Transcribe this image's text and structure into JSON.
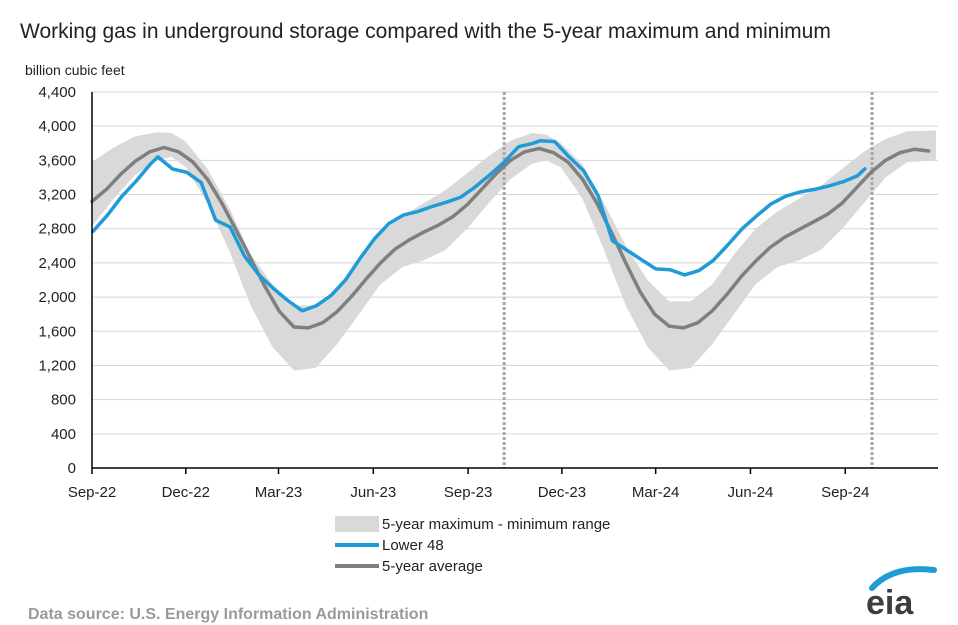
{
  "chart_data": {
    "type": "line",
    "title": "Working gas in underground  storage compared with the 5-year maximum and minimum",
    "ylabel": "billion cubic feet",
    "ylim": [
      0,
      4400
    ],
    "yticks": [
      "0",
      "400",
      "800",
      "1,200",
      "1,600",
      "2,000",
      "2,400",
      "2,800",
      "3,200",
      "3,600",
      "4,000",
      "4,400"
    ],
    "xlim": [
      "2022-09-01",
      "2024-11-30"
    ],
    "xticks": [
      {
        "date": "2022-09-01",
        "label": "Sep-22"
      },
      {
        "date": "2022-12-01",
        "label": "Dec-22"
      },
      {
        "date": "2023-03-01",
        "label": "Mar-23"
      },
      {
        "date": "2023-06-01",
        "label": "Jun-23"
      },
      {
        "date": "2023-09-01",
        "label": "Sep-23"
      },
      {
        "date": "2023-12-01",
        "label": "Dec-23"
      },
      {
        "date": "2024-03-01",
        "label": "Mar-24"
      },
      {
        "date": "2024-06-01",
        "label": "Jun-24"
      },
      {
        "date": "2024-09-01",
        "label": "Sep-24"
      }
    ],
    "grid": "horizontal",
    "legend_position": "bottom",
    "legend": [
      {
        "label": "5-year maximum - minimum range",
        "color": "#d9d9d9"
      },
      {
        "label": "Lower 48",
        "color": "#1f9bd7"
      },
      {
        "label": "5-year average",
        "color": "#7f7f7f"
      }
    ],
    "reference_lines": [
      {
        "date": "2023-10-06"
      },
      {
        "date": "2024-09-27"
      }
    ],
    "series": [
      {
        "name": "5-year maximum - minimum range",
        "kind": "band",
        "color": "#d9d9d9",
        "points": [
          {
            "date": "2022-09-01",
            "max": 3580,
            "min": 2830
          },
          {
            "date": "2022-09-22",
            "max": 3750,
            "min": 3150
          },
          {
            "date": "2022-10-13",
            "max": 3880,
            "min": 3430
          },
          {
            "date": "2022-11-03",
            "max": 3930,
            "min": 3600
          },
          {
            "date": "2022-11-17",
            "max": 3920,
            "min": 3640
          },
          {
            "date": "2022-12-01",
            "max": 3820,
            "min": 3520
          },
          {
            "date": "2022-12-22",
            "max": 3500,
            "min": 3100
          },
          {
            "date": "2023-01-12",
            "max": 3050,
            "min": 2550
          },
          {
            "date": "2023-02-02",
            "max": 2500,
            "min": 1900
          },
          {
            "date": "2023-02-23",
            "max": 2150,
            "min": 1420
          },
          {
            "date": "2023-03-16",
            "max": 1900,
            "min": 1140
          },
          {
            "date": "2023-04-06",
            "max": 1900,
            "min": 1170
          },
          {
            "date": "2023-04-27",
            "max": 2100,
            "min": 1450
          },
          {
            "date": "2023-05-18",
            "max": 2450,
            "min": 1800
          },
          {
            "date": "2023-06-08",
            "max": 2750,
            "min": 2150
          },
          {
            "date": "2023-06-29",
            "max": 2950,
            "min": 2350
          },
          {
            "date": "2023-07-20",
            "max": 3100,
            "min": 2430
          },
          {
            "date": "2023-08-10",
            "max": 3250,
            "min": 2550
          },
          {
            "date": "2023-08-31",
            "max": 3450,
            "min": 2800
          },
          {
            "date": "2023-09-21",
            "max": 3650,
            "min": 3100
          },
          {
            "date": "2023-10-12",
            "max": 3830,
            "min": 3380
          },
          {
            "date": "2023-11-02",
            "max": 3920,
            "min": 3560
          },
          {
            "date": "2023-11-16",
            "max": 3900,
            "min": 3600
          },
          {
            "date": "2023-11-30",
            "max": 3800,
            "min": 3520
          },
          {
            "date": "2023-12-21",
            "max": 3550,
            "min": 3150
          },
          {
            "date": "2024-01-11",
            "max": 3100,
            "min": 2550
          },
          {
            "date": "2024-02-01",
            "max": 2600,
            "min": 1900
          },
          {
            "date": "2024-02-22",
            "max": 2200,
            "min": 1420
          },
          {
            "date": "2024-03-14",
            "max": 1950,
            "min": 1140
          },
          {
            "date": "2024-04-04",
            "max": 1950,
            "min": 1170
          },
          {
            "date": "2024-04-25",
            "max": 2150,
            "min": 1450
          },
          {
            "date": "2024-05-16",
            "max": 2500,
            "min": 1800
          },
          {
            "date": "2024-06-06",
            "max": 2800,
            "min": 2150
          },
          {
            "date": "2024-06-27",
            "max": 3000,
            "min": 2350
          },
          {
            "date": "2024-07-18",
            "max": 3150,
            "min": 2430
          },
          {
            "date": "2024-08-08",
            "max": 3300,
            "min": 2550
          },
          {
            "date": "2024-08-29",
            "max": 3500,
            "min": 2800
          },
          {
            "date": "2024-09-19",
            "max": 3700,
            "min": 3100
          },
          {
            "date": "2024-10-10",
            "max": 3850,
            "min": 3400
          },
          {
            "date": "2024-10-31",
            "max": 3940,
            "min": 3580
          },
          {
            "date": "2024-11-28",
            "max": 3950,
            "min": 3600
          }
        ]
      },
      {
        "name": "Lower 48",
        "kind": "line",
        "color": "#1f9bd7",
        "points": [
          {
            "date": "2022-09-02",
            "value": 2770
          },
          {
            "date": "2022-09-16",
            "value": 2960
          },
          {
            "date": "2022-09-30",
            "value": 3180
          },
          {
            "date": "2022-10-14",
            "value": 3360
          },
          {
            "date": "2022-10-28",
            "value": 3560
          },
          {
            "date": "2022-11-04",
            "value": 3640
          },
          {
            "date": "2022-11-18",
            "value": 3500
          },
          {
            "date": "2022-12-02",
            "value": 3460
          },
          {
            "date": "2022-12-16",
            "value": 3340
          },
          {
            "date": "2022-12-30",
            "value": 2900
          },
          {
            "date": "2023-01-13",
            "value": 2820
          },
          {
            "date": "2023-01-27",
            "value": 2480
          },
          {
            "date": "2023-02-10",
            "value": 2260
          },
          {
            "date": "2023-02-24",
            "value": 2100
          },
          {
            "date": "2023-03-10",
            "value": 1960
          },
          {
            "date": "2023-03-24",
            "value": 1840
          },
          {
            "date": "2023-04-07",
            "value": 1900
          },
          {
            "date": "2023-04-21",
            "value": 2020
          },
          {
            "date": "2023-05-05",
            "value": 2200
          },
          {
            "date": "2023-05-19",
            "value": 2450
          },
          {
            "date": "2023-06-02",
            "value": 2680
          },
          {
            "date": "2023-06-16",
            "value": 2860
          },
          {
            "date": "2023-06-30",
            "value": 2960
          },
          {
            "date": "2023-07-14",
            "value": 3000
          },
          {
            "date": "2023-07-28",
            "value": 3060
          },
          {
            "date": "2023-08-11",
            "value": 3110
          },
          {
            "date": "2023-08-25",
            "value": 3170
          },
          {
            "date": "2023-09-08",
            "value": 3290
          },
          {
            "date": "2023-09-22",
            "value": 3430
          },
          {
            "date": "2023-10-06",
            "value": 3580
          },
          {
            "date": "2023-10-20",
            "value": 3760
          },
          {
            "date": "2023-11-03",
            "value": 3800
          },
          {
            "date": "2023-11-10",
            "value": 3830
          },
          {
            "date": "2023-11-24",
            "value": 3820
          },
          {
            "date": "2023-12-08",
            "value": 3640
          },
          {
            "date": "2023-12-22",
            "value": 3480
          },
          {
            "date": "2024-01-05",
            "value": 3190
          },
          {
            "date": "2024-01-19",
            "value": 2660
          },
          {
            "date": "2024-02-02",
            "value": 2550
          },
          {
            "date": "2024-02-16",
            "value": 2440
          },
          {
            "date": "2024-03-01",
            "value": 2330
          },
          {
            "date": "2024-03-15",
            "value": 2320
          },
          {
            "date": "2024-03-29",
            "value": 2260
          },
          {
            "date": "2024-04-12",
            "value": 2310
          },
          {
            "date": "2024-04-26",
            "value": 2430
          },
          {
            "date": "2024-05-10",
            "value": 2610
          },
          {
            "date": "2024-05-24",
            "value": 2800
          },
          {
            "date": "2024-06-07",
            "value": 2950
          },
          {
            "date": "2024-06-21",
            "value": 3090
          },
          {
            "date": "2024-07-05",
            "value": 3180
          },
          {
            "date": "2024-07-19",
            "value": 3230
          },
          {
            "date": "2024-08-02",
            "value": 3260
          },
          {
            "date": "2024-08-16",
            "value": 3300
          },
          {
            "date": "2024-08-30",
            "value": 3350
          },
          {
            "date": "2024-09-13",
            "value": 3420
          },
          {
            "date": "2024-09-20",
            "value": 3500
          }
        ]
      },
      {
        "name": "5-year average",
        "kind": "line",
        "color": "#7f7f7f",
        "points": [
          {
            "date": "2022-09-01",
            "value": 3120
          },
          {
            "date": "2022-09-15",
            "value": 3260
          },
          {
            "date": "2022-09-29",
            "value": 3440
          },
          {
            "date": "2022-10-13",
            "value": 3590
          },
          {
            "date": "2022-10-27",
            "value": 3700
          },
          {
            "date": "2022-11-10",
            "value": 3750
          },
          {
            "date": "2022-11-24",
            "value": 3700
          },
          {
            "date": "2022-12-08",
            "value": 3580
          },
          {
            "date": "2022-12-22",
            "value": 3380
          },
          {
            "date": "2023-01-05",
            "value": 3100
          },
          {
            "date": "2023-01-19",
            "value": 2780
          },
          {
            "date": "2023-02-02",
            "value": 2450
          },
          {
            "date": "2023-02-16",
            "value": 2120
          },
          {
            "date": "2023-03-02",
            "value": 1830
          },
          {
            "date": "2023-03-16",
            "value": 1650
          },
          {
            "date": "2023-03-30",
            "value": 1640
          },
          {
            "date": "2023-04-13",
            "value": 1700
          },
          {
            "date": "2023-04-27",
            "value": 1830
          },
          {
            "date": "2023-05-11",
            "value": 2010
          },
          {
            "date": "2023-05-25",
            "value": 2210
          },
          {
            "date": "2023-06-08",
            "value": 2400
          },
          {
            "date": "2023-06-22",
            "value": 2560
          },
          {
            "date": "2023-07-06",
            "value": 2670
          },
          {
            "date": "2023-07-20",
            "value": 2760
          },
          {
            "date": "2023-08-03",
            "value": 2840
          },
          {
            "date": "2023-08-17",
            "value": 2940
          },
          {
            "date": "2023-08-31",
            "value": 3080
          },
          {
            "date": "2023-09-14",
            "value": 3260
          },
          {
            "date": "2023-09-28",
            "value": 3440
          },
          {
            "date": "2023-10-12",
            "value": 3600
          },
          {
            "date": "2023-10-26",
            "value": 3700
          },
          {
            "date": "2023-11-09",
            "value": 3740
          },
          {
            "date": "2023-11-23",
            "value": 3690
          },
          {
            "date": "2023-12-07",
            "value": 3580
          },
          {
            "date": "2023-12-21",
            "value": 3380
          },
          {
            "date": "2024-01-04",
            "value": 3100
          },
          {
            "date": "2024-01-18",
            "value": 2760
          },
          {
            "date": "2024-02-01",
            "value": 2400
          },
          {
            "date": "2024-02-15",
            "value": 2060
          },
          {
            "date": "2024-02-29",
            "value": 1800
          },
          {
            "date": "2024-03-14",
            "value": 1660
          },
          {
            "date": "2024-03-28",
            "value": 1640
          },
          {
            "date": "2024-04-11",
            "value": 1700
          },
          {
            "date": "2024-04-25",
            "value": 1840
          },
          {
            "date": "2024-05-09",
            "value": 2030
          },
          {
            "date": "2024-05-23",
            "value": 2240
          },
          {
            "date": "2024-06-06",
            "value": 2420
          },
          {
            "date": "2024-06-20",
            "value": 2580
          },
          {
            "date": "2024-07-04",
            "value": 2700
          },
          {
            "date": "2024-07-18",
            "value": 2790
          },
          {
            "date": "2024-08-01",
            "value": 2880
          },
          {
            "date": "2024-08-15",
            "value": 2970
          },
          {
            "date": "2024-08-29",
            "value": 3100
          },
          {
            "date": "2024-09-12",
            "value": 3280
          },
          {
            "date": "2024-09-26",
            "value": 3460
          },
          {
            "date": "2024-10-10",
            "value": 3600
          },
          {
            "date": "2024-10-24",
            "value": 3690
          },
          {
            "date": "2024-11-07",
            "value": 3730
          },
          {
            "date": "2024-11-21",
            "value": 3710
          }
        ]
      }
    ]
  },
  "footer": {
    "source": "Data source:  U.S. Energy Information Administration",
    "logo_text": "eia"
  }
}
